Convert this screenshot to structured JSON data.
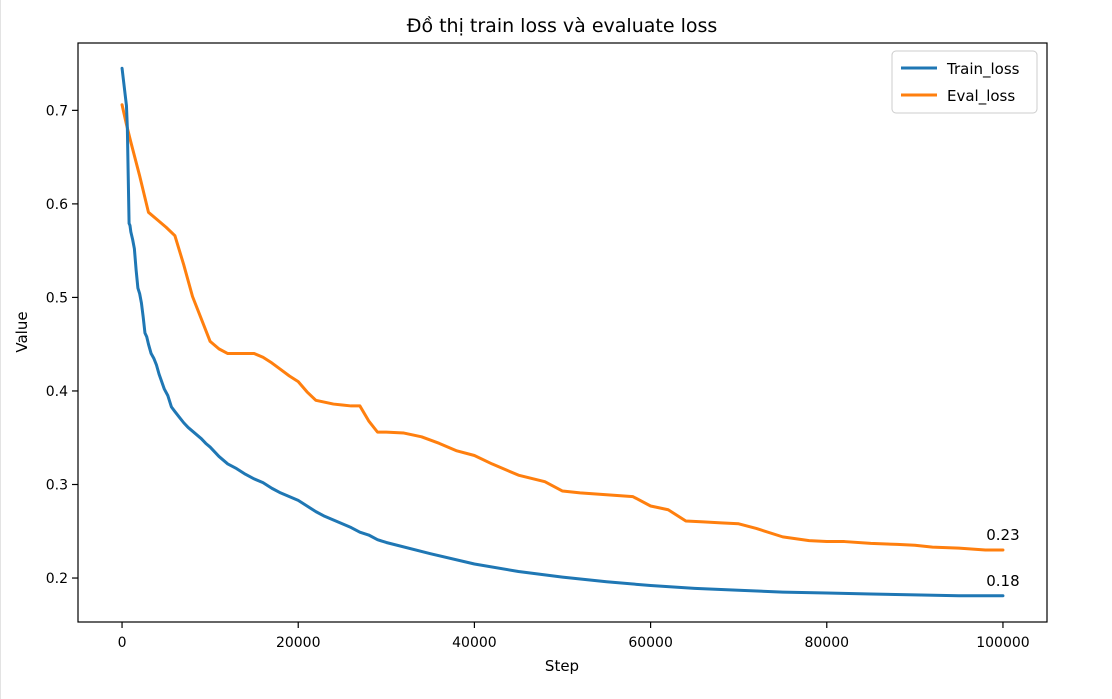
{
  "chart_data": {
    "type": "line",
    "title": "Đồ thị train loss và evaluate loss",
    "xlabel": "Step",
    "ylabel": "Value",
    "xlim": [
      -5000,
      105000
    ],
    "ylim": [
      0.153,
      0.772
    ],
    "xticks": [
      0,
      20000,
      40000,
      60000,
      80000,
      100000
    ],
    "xtick_labels": [
      "0",
      "20000",
      "40000",
      "60000",
      "80000",
      "100000"
    ],
    "yticks": [
      0.2,
      0.3,
      0.4,
      0.5,
      0.6,
      0.7
    ],
    "ytick_labels": [
      "0.2",
      "0.3",
      "0.4",
      "0.5",
      "0.6",
      "0.7"
    ],
    "grid": false,
    "legend_position": "top-right",
    "series": [
      {
        "name": "Train_loss",
        "color": "#1f77b4",
        "end_label": "0.18",
        "x": [
          0,
          500,
          600,
          700,
          800,
          900,
          1000,
          1200,
          1400,
          1600,
          1800,
          2000,
          2200,
          2400,
          2600,
          2800,
          3000,
          3300,
          3600,
          3900,
          4200,
          4500,
          4800,
          5200,
          5600,
          6000,
          6500,
          7000,
          7500,
          8000,
          8500,
          9000,
          9500,
          10000,
          11000,
          12000,
          13000,
          14000,
          15000,
          16000,
          17000,
          18000,
          19000,
          20000,
          21000,
          22000,
          23000,
          24000,
          25000,
          26000,
          27000,
          28000,
          29000,
          30000,
          35000,
          40000,
          45000,
          50000,
          55000,
          60000,
          65000,
          70000,
          75000,
          80000,
          85000,
          90000,
          95000,
          100000
        ],
        "y": [
          0.745,
          0.705,
          0.682,
          0.63,
          0.579,
          0.577,
          0.57,
          0.562,
          0.552,
          0.529,
          0.51,
          0.504,
          0.494,
          0.479,
          0.462,
          0.458,
          0.45,
          0.44,
          0.435,
          0.428,
          0.418,
          0.41,
          0.402,
          0.395,
          0.383,
          0.378,
          0.372,
          0.366,
          0.361,
          0.357,
          0.353,
          0.349,
          0.344,
          0.34,
          0.33,
          0.322,
          0.317,
          0.311,
          0.306,
          0.302,
          0.296,
          0.291,
          0.287,
          0.283,
          0.277,
          0.271,
          0.266,
          0.262,
          0.258,
          0.254,
          0.249,
          0.246,
          0.241,
          0.238,
          0.226,
          0.215,
          0.207,
          0.201,
          0.196,
          0.192,
          0.189,
          0.187,
          0.185,
          0.184,
          0.183,
          0.182,
          0.181,
          0.181
        ]
      },
      {
        "name": "Eval_loss",
        "color": "#ff7f0e",
        "end_label": "0.23",
        "x": [
          0,
          500,
          1000,
          2000,
          3000,
          4000,
          5000,
          6000,
          7000,
          8000,
          9000,
          10000,
          11000,
          12000,
          13000,
          14000,
          15000,
          16000,
          17000,
          18000,
          19000,
          20000,
          21000,
          22000,
          23000,
          24000,
          25000,
          26000,
          27000,
          28000,
          29000,
          30000,
          32000,
          34000,
          36000,
          38000,
          40000,
          42000,
          45000,
          48000,
          50000,
          52000,
          55000,
          58000,
          60000,
          62000,
          64000,
          66000,
          68000,
          70000,
          72000,
          75000,
          78000,
          80000,
          82000,
          85000,
          88000,
          90000,
          92000,
          95000,
          98000,
          100000
        ],
        "y": [
          0.706,
          0.685,
          0.666,
          0.63,
          0.591,
          0.583,
          0.575,
          0.566,
          0.535,
          0.501,
          0.477,
          0.453,
          0.445,
          0.44,
          0.44,
          0.44,
          0.44,
          0.436,
          0.43,
          0.423,
          0.416,
          0.41,
          0.399,
          0.39,
          0.388,
          0.386,
          0.385,
          0.384,
          0.384,
          0.368,
          0.356,
          0.356,
          0.355,
          0.351,
          0.344,
          0.336,
          0.331,
          0.322,
          0.31,
          0.303,
          0.293,
          0.291,
          0.289,
          0.287,
          0.277,
          0.273,
          0.261,
          0.26,
          0.259,
          0.258,
          0.253,
          0.244,
          0.24,
          0.239,
          0.239,
          0.237,
          0.236,
          0.235,
          0.233,
          0.232,
          0.23,
          0.23
        ]
      }
    ]
  }
}
